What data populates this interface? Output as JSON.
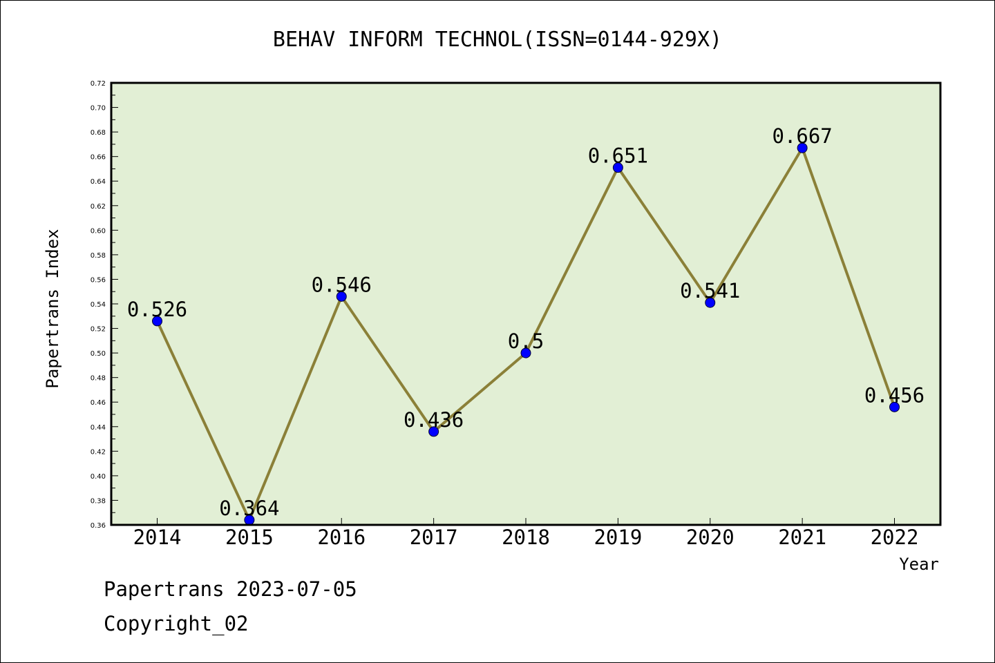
{
  "chart_data": {
    "type": "line",
    "title": "BEHAV INFORM TECHNOL(ISSN=0144-929X)",
    "xlabel": "Year",
    "ylabel": "Papertrans Index",
    "categories": [
      "2014",
      "2015",
      "2016",
      "2017",
      "2018",
      "2019",
      "2020",
      "2021",
      "2022"
    ],
    "series": [
      {
        "values": [
          0.526,
          0.364,
          0.546,
          0.436,
          0.5,
          0.651,
          0.541,
          0.667,
          0.456
        ],
        "labels": [
          "0.526",
          "0.364",
          "0.546",
          "0.436",
          "0.5",
          "0.651",
          "0.541",
          "0.667",
          "0.456"
        ]
      }
    ],
    "ylim": [
      0.36,
      0.72
    ],
    "yticks": [
      "0.36",
      "0.38",
      "0.40",
      "0.42",
      "0.44",
      "0.46",
      "0.48",
      "0.50",
      "0.52",
      "0.54",
      "0.56",
      "0.58",
      "0.60",
      "0.62",
      "0.64",
      "0.66",
      "0.68",
      "0.70",
      "0.72"
    ],
    "grid": false,
    "plot_background": "#e2efd5",
    "line_color": "#8b8038",
    "marker_color": "#0000ff"
  },
  "footer": {
    "source": "Papertrans 2023-07-05",
    "copyright": "Copyright_02"
  }
}
